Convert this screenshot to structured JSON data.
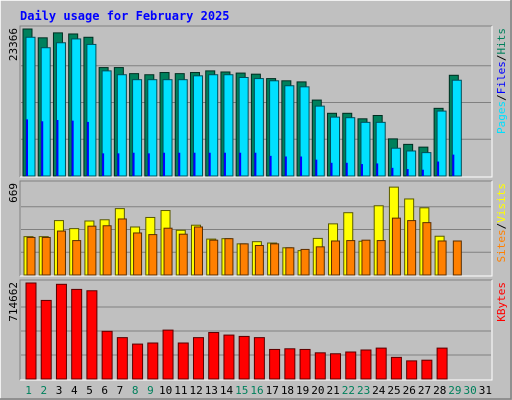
{
  "colors": {
    "frame_bg": "#c0c0c0",
    "plot_bg": "#c0c0c0",
    "grid": "#808080",
    "title": "#0000ff",
    "hits": "#00805c",
    "files": "#0000ff",
    "pages": "#00e0ff",
    "visits": "#ffff00",
    "sites": "#ff8000",
    "kbytes": "#ff0000",
    "weekday_label": "#000000",
    "weekend_label": "#00805c"
  },
  "chart_data": [
    {
      "type": "bar",
      "title": "Daily usage for February 2025",
      "panel": "hits-files-pages",
      "ymax_label": "23366",
      "ylim": [
        0,
        23366
      ],
      "grid": true,
      "legend": "right-vertical",
      "legend_entries": [
        "Pages",
        "Files",
        "Hits"
      ],
      "legend_separator": "/",
      "x": [
        1,
        2,
        3,
        4,
        5,
        6,
        7,
        8,
        9,
        10,
        11,
        12,
        13,
        14,
        15,
        16,
        17,
        18,
        19,
        20,
        21,
        22,
        23,
        24,
        25,
        26,
        27,
        28,
        29,
        30,
        31
      ],
      "series": [
        {
          "name": "Hits",
          "color_key": "hits",
          "values": [
            23366,
            21965,
            22751,
            22576,
            22051,
            17235,
            17235,
            16272,
            16097,
            16447,
            16272,
            16447,
            16710,
            16535,
            16360,
            16185,
            15484,
            15134,
            14958,
            12069,
            9968,
            9968,
            9092,
            9617,
            5903,
            5028,
            4590,
            10755,
            16009,
            null,
            null
          ]
        },
        {
          "name": "Files",
          "color_key": "files",
          "values": [
            9000,
            8700,
            8900,
            8800,
            8600,
            3600,
            3600,
            3700,
            3600,
            3700,
            3700,
            3700,
            3700,
            3700,
            3700,
            3700,
            3200,
            3100,
            3100,
            2600,
            2100,
            2100,
            1900,
            2000,
            1300,
            1100,
            1000,
            2300,
            3400,
            null,
            null
          ]
        },
        {
          "name": "Pages",
          "color_key": "pages",
          "values": [
            22051,
            20389,
            21177,
            21790,
            20914,
            16710,
            16097,
            15309,
            15309,
            15309,
            15309,
            15922,
            16097,
            16097,
            15659,
            15484,
            15134,
            14346,
            14171,
            11106,
            9355,
            9267,
            8529,
            8529,
            4415,
            3978,
            3715,
            10318,
            15222,
            null,
            null
          ]
        }
      ]
    },
    {
      "type": "bar",
      "panel": "visits-sites",
      "ymax_label": "669",
      "ylim": [
        0,
        669
      ],
      "grid": true,
      "legend": "right-vertical",
      "legend_entries": [
        "Sites",
        "Visits"
      ],
      "legend_separator": "/",
      "x": [
        1,
        2,
        3,
        4,
        5,
        6,
        7,
        8,
        9,
        10,
        11,
        12,
        13,
        14,
        15,
        16,
        17,
        18,
        19,
        20,
        21,
        22,
        23,
        24,
        25,
        26,
        27,
        28,
        29,
        30,
        31
      ],
      "series": [
        {
          "name": "Visits",
          "color_key": "visits",
          "values": [
            282,
            282,
            400,
            341,
            397,
            406,
            488,
            353,
            423,
            474,
            329,
            366,
            264,
            267,
            229,
            245,
            235,
            200,
            179,
            269,
            376,
            458,
            248,
            509,
            646,
            559,
            494,
            285,
            null,
            null,
            null
          ]
        },
        {
          "name": "Sites",
          "color_key": "sites",
          "values": [
            276,
            276,
            323,
            253,
            359,
            362,
            412,
            309,
            297,
            344,
            300,
            353,
            256,
            267,
            229,
            217,
            229,
            200,
            188,
            207,
            250,
            253,
            256,
            253,
            418,
            400,
            385,
            250,
            250,
            null,
            null
          ]
        }
      ]
    },
    {
      "type": "bar",
      "panel": "kbytes",
      "ymax_label": "714662",
      "ylim": [
        0,
        714662
      ],
      "grid": true,
      "legend": "right-vertical",
      "legend_entries": [
        "KBytes"
      ],
      "x": [
        1,
        2,
        3,
        4,
        5,
        6,
        7,
        8,
        9,
        10,
        11,
        12,
        13,
        14,
        15,
        16,
        17,
        18,
        19,
        20,
        21,
        22,
        23,
        24,
        25,
        26,
        27,
        28,
        29,
        30,
        31
      ],
      "x_tick_labels": [
        "1",
        "2",
        "3",
        "4",
        "5",
        "6",
        "7",
        "8",
        "9",
        "10",
        "11",
        "12",
        "13",
        "14",
        "15",
        "16",
        "17",
        "18",
        "19",
        "20",
        "21",
        "22",
        "23",
        "24",
        "25",
        "26",
        "27",
        "28",
        "29",
        "30",
        "31"
      ],
      "weekend_days": [
        1,
        2,
        8,
        9,
        15,
        16,
        22,
        23,
        29,
        30
      ],
      "series": [
        {
          "name": "KBytes",
          "color_key": "kbytes",
          "values": [
            714662,
            585000,
            705000,
            667000,
            657000,
            355000,
            308000,
            260000,
            268000,
            364000,
            268000,
            308000,
            346000,
            327000,
            317000,
            308000,
            220000,
            225000,
            220000,
            195000,
            188000,
            201000,
            216000,
            230000,
            161000,
            135000,
            140000,
            230000,
            null,
            null,
            null
          ]
        }
      ]
    }
  ]
}
